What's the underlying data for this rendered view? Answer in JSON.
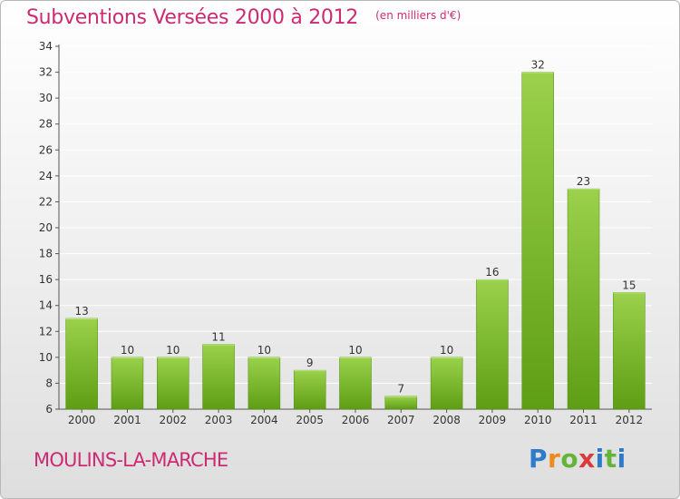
{
  "header": {
    "title": "Subventions Versées 2000 à 2012",
    "subtitle": "(en milliers d'€)"
  },
  "footer": {
    "commune": "MOULINS-LA-MARCHE",
    "brand": "Proxiti"
  },
  "colors": {
    "title": "#cc2b74",
    "bar_top": "#9bd14c",
    "bar_bottom": "#5e9e14",
    "axis": "#555555",
    "grid": "#ffffff"
  },
  "chart_data": {
    "type": "bar",
    "title": "Subventions Versées 2000 à 2012",
    "subtitle": "(en milliers d'€)",
    "xlabel": "",
    "ylabel": "",
    "categories": [
      "2000",
      "2001",
      "2002",
      "2003",
      "2004",
      "2005",
      "2006",
      "2007",
      "2008",
      "2009",
      "2010",
      "2011",
      "2012"
    ],
    "values": [
      13,
      10,
      10,
      11,
      10,
      9,
      10,
      7,
      10,
      16,
      32,
      23,
      15
    ],
    "ylim": [
      6,
      34
    ],
    "yticks": [
      6,
      8,
      10,
      12,
      14,
      16,
      18,
      20,
      22,
      24,
      26,
      28,
      30,
      32,
      34
    ],
    "grid": true,
    "data_labels": true
  }
}
